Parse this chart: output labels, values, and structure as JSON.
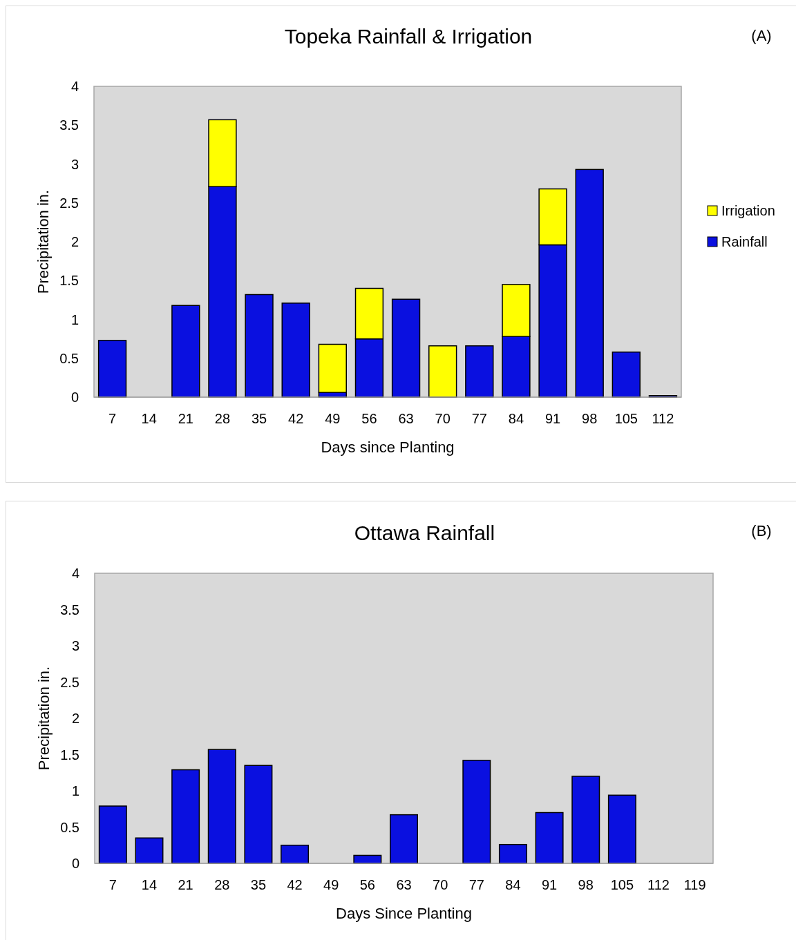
{
  "chart_data": [
    {
      "type": "bar",
      "title": "Topeka Rainfall & Irrigation",
      "xlabel": "Days since Planting",
      "ylabel": "Precipitation in.",
      "annotations": [
        "(A)"
      ],
      "categories": [
        "7",
        "14",
        "21",
        "28",
        "35",
        "42",
        "49",
        "56",
        "63",
        "70",
        "77",
        "84",
        "91",
        "98",
        "105",
        "112"
      ],
      "stacked": true,
      "series": [
        {
          "name": "Rainfall",
          "color": "#0a10e0",
          "values": [
            0.73,
            0,
            1.18,
            2.71,
            1.32,
            1.21,
            0.06,
            0.75,
            1.26,
            0,
            0.66,
            0.78,
            1.96,
            2.93,
            0.58,
            0.02
          ]
        },
        {
          "name": "Irrigation",
          "color": "#ffff00",
          "values": [
            null,
            null,
            null,
            0.86,
            null,
            null,
            0.62,
            0.65,
            null,
            0.66,
            null,
            0.67,
            0.72,
            null,
            null,
            null
          ]
        }
      ],
      "ylim": [
        0,
        4
      ],
      "yticks": [
        0,
        0.5,
        1,
        1.5,
        2,
        2.5,
        3,
        3.5,
        4
      ],
      "legend": "right",
      "grid": false
    },
    {
      "type": "bar",
      "title": "Ottawa Rainfall",
      "xlabel": "Days Since Planting",
      "ylabel": "Precipitation in.",
      "annotations": [
        "(B)"
      ],
      "categories": [
        "7",
        "14",
        "21",
        "28",
        "35",
        "42",
        "49",
        "56",
        "63",
        "70",
        "77",
        "84",
        "91",
        "98",
        "105",
        "112",
        "119"
      ],
      "series": [
        {
          "color": "#0a10e0",
          "values": [
            0.79,
            0.35,
            1.29,
            1.57,
            1.35,
            0.25,
            0,
            0.11,
            0.67,
            0,
            1.42,
            0.26,
            0.7,
            1.2,
            0.94,
            0,
            0
          ]
        }
      ],
      "ylim": [
        0,
        4
      ],
      "yticks": [
        0,
        0.5,
        1,
        1.5,
        2,
        2.5,
        3,
        3.5,
        4
      ],
      "legend": false,
      "grid": false
    }
  ]
}
